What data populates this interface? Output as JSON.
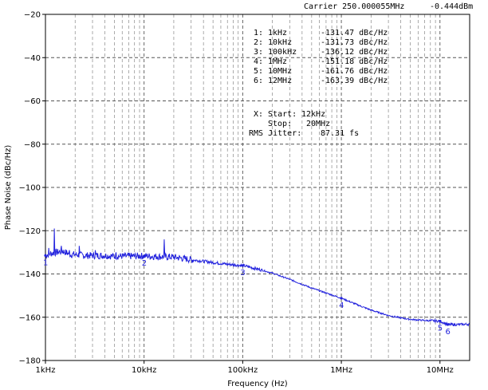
{
  "header": {
    "carrier_label": "Carrier 250.000055MHz",
    "carrier_power": "-0.444dBm"
  },
  "chart_data": {
    "type": "line",
    "xlabel": "Frequency (Hz)",
    "ylabel": "Phase Noise (dBc/Hz)",
    "xscale": "log",
    "xlim": [
      1000,
      20000000
    ],
    "ylim": [
      -180,
      -20
    ],
    "grid": true,
    "x_ticks": [
      {
        "value": 1000,
        "label": "1kHz"
      },
      {
        "value": 10000,
        "label": "10kHz"
      },
      {
        "value": 100000,
        "label": "100kHz"
      },
      {
        "value": 1000000,
        "label": "1MHz"
      },
      {
        "value": 10000000,
        "label": "10MHz"
      }
    ],
    "y_ticks": [
      -20,
      -40,
      -60,
      -80,
      -100,
      -120,
      -140,
      -160,
      -180
    ],
    "line_color": "#2222dd",
    "series": [
      {
        "x": [
          1000,
          1150,
          1300,
          1500,
          1800,
          2000,
          2500,
          3000,
          4000,
          5000,
          7000,
          10000,
          15000,
          20000,
          30000,
          50000,
          70000,
          100000,
          150000,
          200000,
          300000,
          500000,
          700000,
          1000000,
          1500000,
          2000000,
          3000000,
          4000000,
          5000000,
          7000000,
          10000000,
          12000000,
          15000000,
          20000000
        ],
        "y": [
          -131.5,
          -130.5,
          -130,
          -129.5,
          -131,
          -131,
          -131.5,
          -131.5,
          -131.5,
          -131.8,
          -131.8,
          -131.7,
          -132,
          -132.2,
          -133.4,
          -134.7,
          -135.5,
          -136.1,
          -138,
          -139.6,
          -142.5,
          -146.5,
          -148.8,
          -151.2,
          -154.5,
          -156.7,
          -159.2,
          -160.3,
          -161,
          -161.5,
          -161.8,
          -163.4,
          -163.4,
          -163.2
        ]
      }
    ],
    "spurs": [
      {
        "x": 1080,
        "y": -128
      },
      {
        "x": 1230,
        "y": -119
      },
      {
        "x": 1450,
        "y": -127
      },
      {
        "x": 1750,
        "y": -129
      },
      {
        "x": 2200,
        "y": -127
      },
      {
        "x": 3200,
        "y": -129
      },
      {
        "x": 5200,
        "y": -130
      },
      {
        "x": 16000,
        "y": -124
      }
    ],
    "markers": [
      {
        "label": "1",
        "x": 1000,
        "y": -131.47
      },
      {
        "label": "2",
        "x": 10000,
        "y": -131.73
      },
      {
        "label": "3",
        "x": 100000,
        "y": -136.12
      },
      {
        "label": "4",
        "x": 1000000,
        "y": -151.18
      },
      {
        "label": "5",
        "x": 10000000,
        "y": -161.76
      },
      {
        "label": "6",
        "x": 12000000,
        "y": -163.39
      }
    ]
  },
  "marker_table": [
    {
      "index": "1:",
      "freq": "1kHz",
      "value": "-131.47 dBc/Hz"
    },
    {
      "index": "2:",
      "freq": "10kHz",
      "value": "-131.73 dBc/Hz"
    },
    {
      "index": "3:",
      "freq": "100kHz",
      "value": "-136.12 dBc/Hz"
    },
    {
      "index": "4:",
      "freq": "1MHz",
      "value": "-151.18 dBc/Hz"
    },
    {
      "index": "5:",
      "freq": "10MHz",
      "value": "-161.76 dBc/Hz"
    },
    {
      "index": "6:",
      "freq": "12MHz",
      "value": "-163.39 dBc/Hz"
    }
  ],
  "jitter": {
    "start_label": "X: Start:",
    "start_value": "12kHz",
    "stop_label": "Stop:",
    "stop_value": "20MHz",
    "rms_label": "RMS Jitter:",
    "rms_value": "87.31 fs"
  }
}
